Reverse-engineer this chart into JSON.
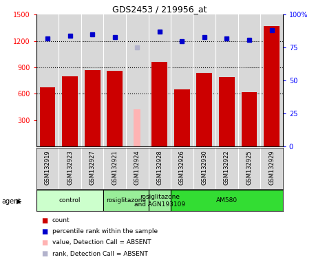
{
  "title": "GDS2453 / 219956_at",
  "samples": [
    "GSM132919",
    "GSM132923",
    "GSM132927",
    "GSM132921",
    "GSM132924",
    "GSM132928",
    "GSM132926",
    "GSM132930",
    "GSM132922",
    "GSM132925",
    "GSM132929"
  ],
  "counts": [
    670,
    800,
    870,
    860,
    null,
    960,
    650,
    840,
    790,
    620,
    1370
  ],
  "counts_absent": [
    null,
    null,
    null,
    null,
    420,
    null,
    null,
    null,
    null,
    null,
    null
  ],
  "percentile_ranks": [
    82,
    84,
    85,
    83,
    null,
    87,
    80,
    83,
    82,
    81,
    88
  ],
  "percentile_ranks_absent": [
    null,
    null,
    null,
    null,
    75,
    null,
    null,
    null,
    null,
    null,
    null
  ],
  "ylim_left": [
    0,
    1500
  ],
  "ylim_right": [
    0,
    100
  ],
  "yticks_left": [
    300,
    600,
    900,
    1200,
    1500
  ],
  "yticks_right": [
    0,
    25,
    50,
    75,
    100
  ],
  "ytick_right_labels": [
    "0",
    "25",
    "50",
    "75",
    "100%"
  ],
  "bar_color": "#cc0000",
  "bar_color_absent": "#ffb3b3",
  "dot_color": "#0000cc",
  "dot_color_absent": "#b3b3cc",
  "panel_bg": "#d8d8d8",
  "agent_groups": [
    {
      "label": "control",
      "cols": [
        0,
        1,
        2
      ],
      "color": "#ccffcc"
    },
    {
      "label": "rosiglitazone",
      "cols": [
        3,
        4
      ],
      "color": "#99ee99"
    },
    {
      "label": "rosiglitazone\nand AGN193109",
      "cols": [
        5
      ],
      "color": "#99ee99"
    },
    {
      "label": "AM580",
      "cols": [
        6,
        7,
        8,
        9,
        10
      ],
      "color": "#33dd33"
    }
  ],
  "legend_items": [
    {
      "color": "#cc0000",
      "label": "count"
    },
    {
      "color": "#0000cc",
      "label": "percentile rank within the sample"
    },
    {
      "color": "#ffb3b3",
      "label": "value, Detection Call = ABSENT"
    },
    {
      "color": "#b3b3cc",
      "label": "rank, Detection Call = ABSENT"
    }
  ]
}
